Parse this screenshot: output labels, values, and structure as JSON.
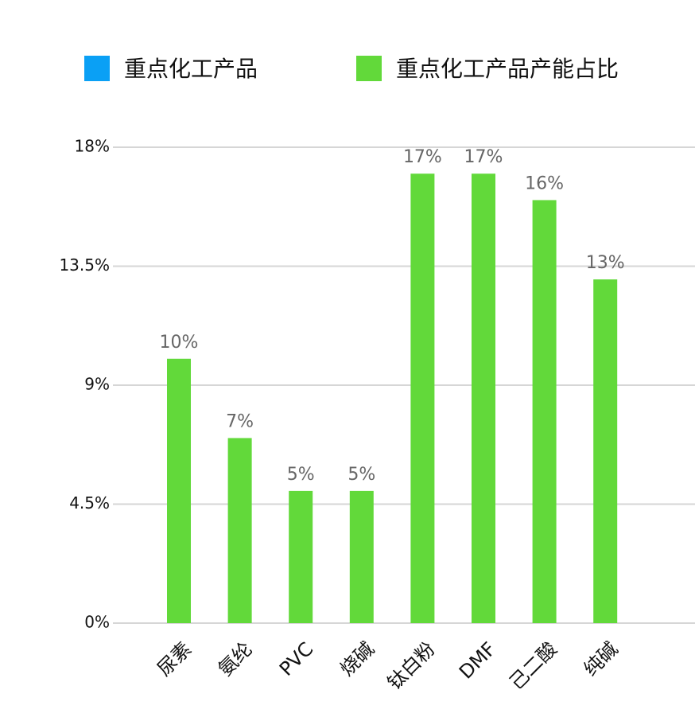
{
  "chart_data": {
    "type": "bar",
    "categories": [
      "尿素",
      "氨纶",
      "PVC",
      "烧碱",
      "钛白粉",
      "DMF",
      "己二酸",
      "纯碱"
    ],
    "series": [
      {
        "name": "重点化工产品",
        "color": "#0aa0f5",
        "values": [
          null,
          null,
          null,
          null,
          null,
          null,
          null,
          null
        ]
      },
      {
        "name": "重点化工产品产能占比",
        "color": "#62d93a",
        "values": [
          10,
          7,
          5,
          5,
          17,
          17,
          16,
          13
        ],
        "value_labels": [
          "10%",
          "7%",
          "5%",
          "5%",
          "17%",
          "17%",
          "16%",
          "13%"
        ]
      }
    ],
    "ylim": [
      0,
      18
    ],
    "yticks": [
      {
        "value": 0,
        "label": "0%"
      },
      {
        "value": 4.5,
        "label": "4.5%"
      },
      {
        "value": 9,
        "label": "9%"
      },
      {
        "value": 13.5,
        "label": "13.5%"
      },
      {
        "value": 18,
        "label": "18%"
      }
    ],
    "grid": true
  }
}
